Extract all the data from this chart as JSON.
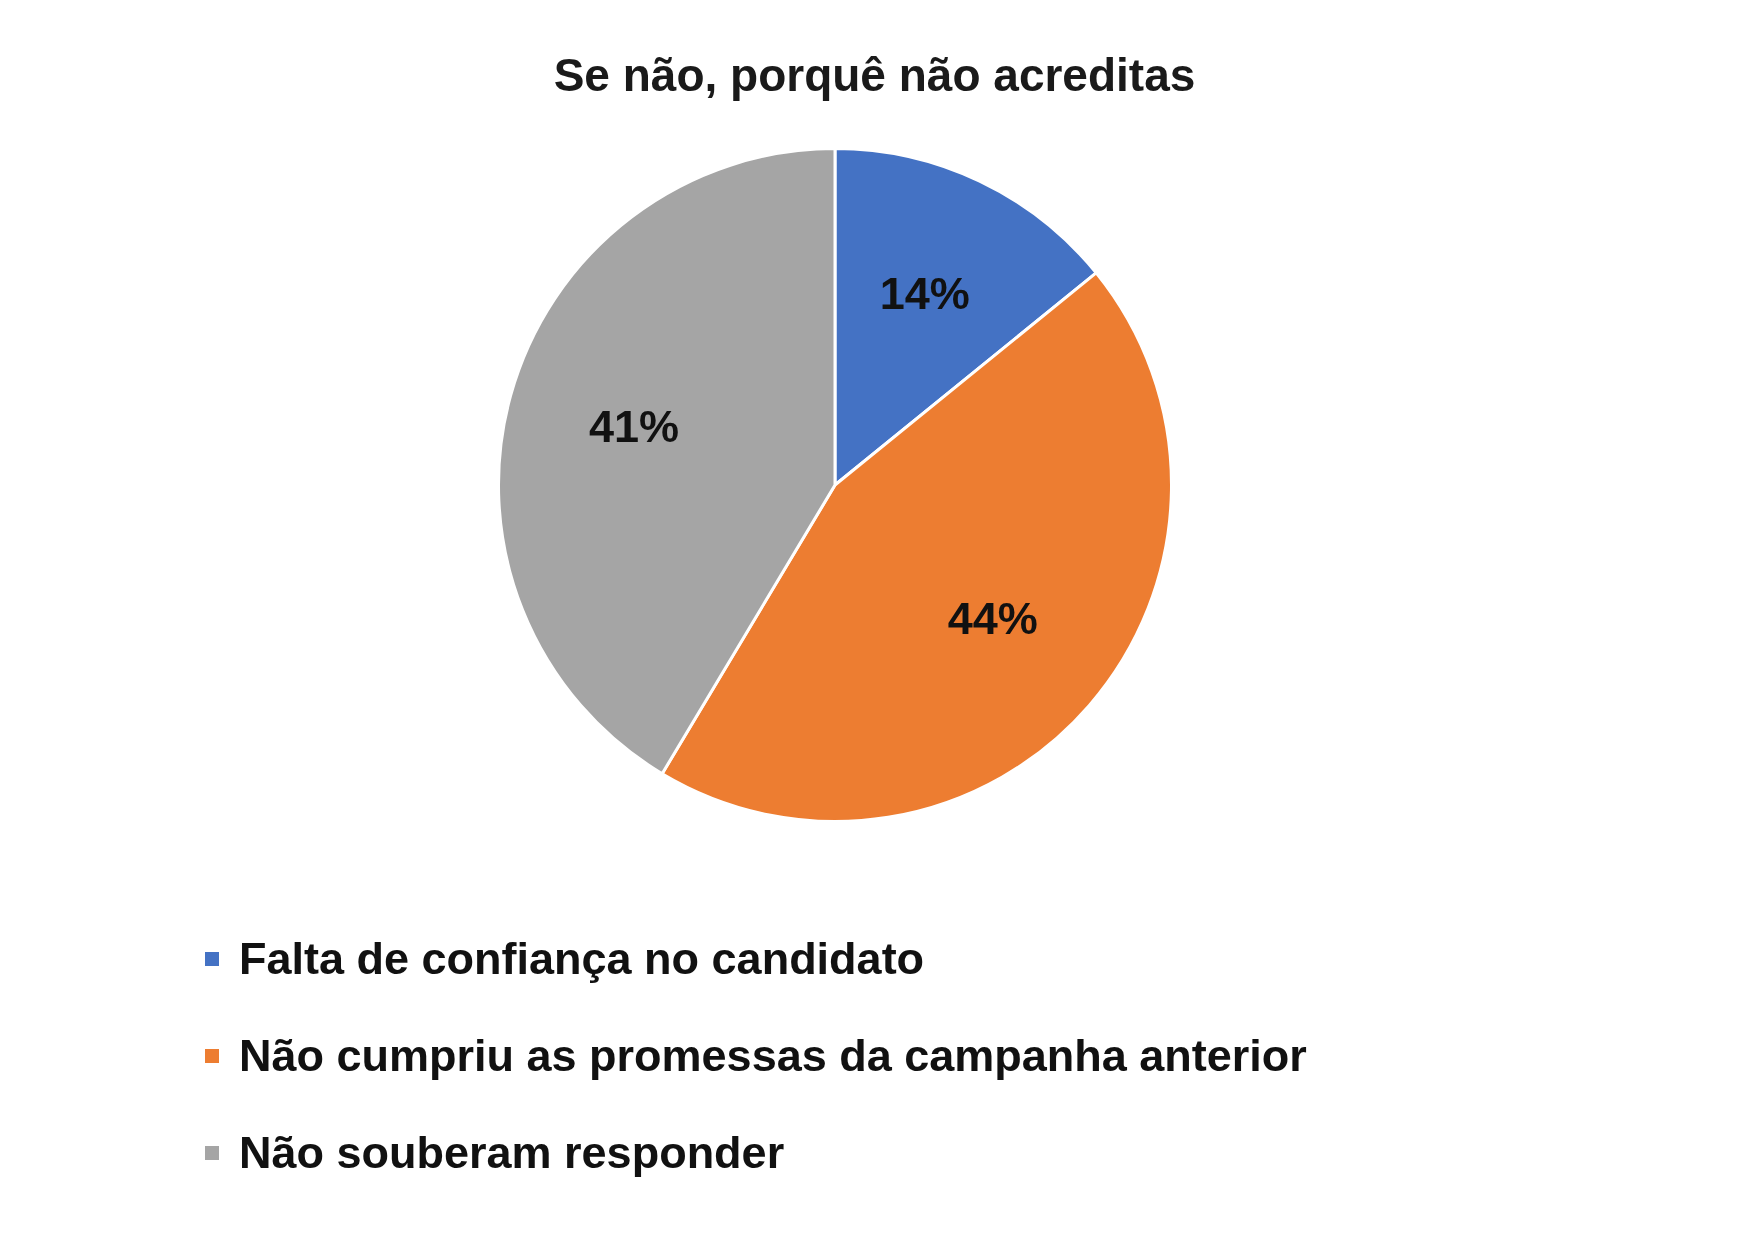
{
  "chart_data": {
    "type": "pie",
    "title": "Se não, porquê não acreditas",
    "categories": [
      "Falta de confiança no candidato",
      "Não cumpriu as promessas da campanha anterior",
      "Não souberam responder"
    ],
    "values": [
      14,
      44,
      41
    ],
    "colors": [
      "#4472c4",
      "#ed7d31",
      "#a5a5a5"
    ],
    "value_labels": [
      "14%",
      "44%",
      "41%"
    ],
    "legend": "bottom"
  }
}
